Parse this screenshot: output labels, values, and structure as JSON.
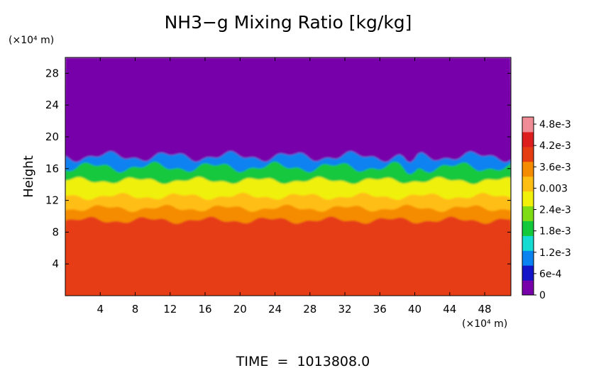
{
  "chart_data": {
    "type": "heatmap",
    "title": "NH3−g Mixing Ratio [kg/kg]",
    "ylabel": "Height",
    "y_unit": "(×10⁴ m)",
    "x_unit": "(×10⁴ m)",
    "xlim": [
      0,
      51
    ],
    "ylim": [
      0,
      30
    ],
    "x_ticks": [
      4,
      8,
      12,
      16,
      20,
      24,
      28,
      32,
      36,
      40,
      44,
      48
    ],
    "y_ticks": [
      4,
      8,
      12,
      16,
      20,
      24,
      28
    ],
    "colorbar": {
      "min": 0,
      "max": 0.005,
      "tick_values": [
        0,
        0.0006,
        0.0012,
        0.0018,
        0.0024,
        0.003,
        0.0036,
        0.0042,
        0.0048
      ],
      "tick_labels": [
        "0",
        "6e-4",
        "1.2e-3",
        "1.8e-3",
        "2.4e-3",
        "0.003",
        "3.6e-3",
        "4.2e-3",
        "4.8e-3"
      ],
      "colors": [
        "#7800aa",
        "#1414c8",
        "#0a82f0",
        "#14dcd2",
        "#14c83c",
        "#7ddc14",
        "#f0f00a",
        "#ffbe14",
        "#f58c00",
        "#e63c14",
        "#dc1e1e",
        "#f08c96"
      ]
    },
    "layers": [
      {
        "y_from": 0,
        "y_to": 9.5,
        "value": 0.004
      },
      {
        "y_from": 9.5,
        "y_to": 11,
        "value": 0.0037
      },
      {
        "y_from": 11,
        "y_to": 12.5,
        "value": 0.0032
      },
      {
        "y_from": 12.5,
        "y_to": 14.5,
        "value": 0.0026
      },
      {
        "y_from": 14.5,
        "y_to": 16.2,
        "value": 0.0019
      },
      {
        "y_from": 16.2,
        "y_to": 17.5,
        "value": 0.0011
      },
      {
        "y_from": 17.5,
        "y_to": 18.2,
        "value": 0.0004
      },
      {
        "y_from": 18.2,
        "y_to": 30,
        "value": 0
      }
    ],
    "time_label": "TIME  =  1013808.0"
  }
}
